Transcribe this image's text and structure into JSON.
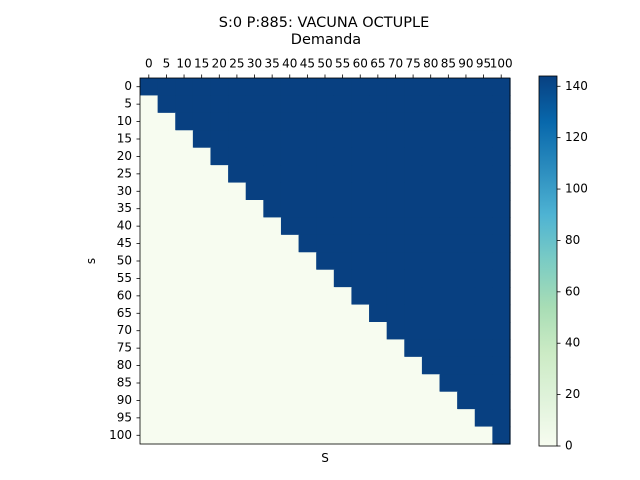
{
  "chart_data": {
    "type": "heatmap",
    "title": "S:0 P:885: VACUNA OCTUPLE",
    "subtitle": "Demanda",
    "xlabel": "S",
    "ylabel": "s",
    "x_ticks": [
      "0",
      "5",
      "10",
      "15",
      "20",
      "25",
      "30",
      "35",
      "40",
      "45",
      "50",
      "55",
      "60",
      "65",
      "70",
      "75",
      "80",
      "85",
      "90",
      "95",
      "100"
    ],
    "y_ticks": [
      "0",
      "5",
      "10",
      "15",
      "20",
      "25",
      "30",
      "35",
      "40",
      "45",
      "50",
      "55",
      "60",
      "65",
      "70",
      "75",
      "80",
      "85",
      "90",
      "95",
      "100"
    ],
    "x_tick_position": "top",
    "value_rule": "cell(s, S) = 0 when S < s, otherwise 144",
    "value_low": 0,
    "value_high": 144,
    "colormap": "GnBu",
    "colors": {
      "low": "#f7fcf0",
      "high": "#084081"
    },
    "colorbar": {
      "ticks": [
        "0",
        "20",
        "40",
        "60",
        "80",
        "100",
        "120",
        "140"
      ],
      "range": [
        0,
        144
      ]
    },
    "grid": false
  }
}
